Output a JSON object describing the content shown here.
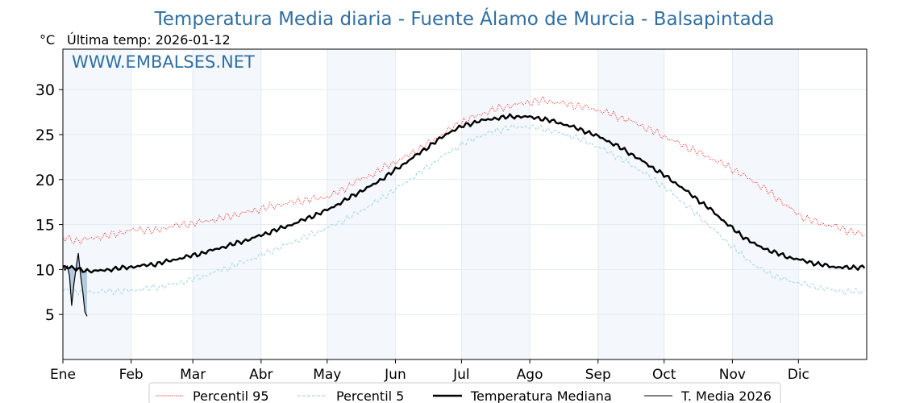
{
  "chart_data": {
    "type": "line",
    "title": "Temperatura Media diaria - Fuente Álamo de Murcia - Balsapintada",
    "unit_label": "°C",
    "last_temp": "Última temp: 2026-01-12",
    "watermark": "WWW.EMBALSES.NET",
    "xlim": [
      1,
      366
    ],
    "ylim": [
      0,
      34.5
    ],
    "yticks": [
      5,
      10,
      15,
      20,
      25,
      30
    ],
    "months": [
      {
        "label": "Ene",
        "day": 1
      },
      {
        "label": "Feb",
        "day": 32
      },
      {
        "label": "Mar",
        "day": 60
      },
      {
        "label": "Abr",
        "day": 91
      },
      {
        "label": "May",
        "day": 121
      },
      {
        "label": "Jun",
        "day": 152
      },
      {
        "label": "Jul",
        "day": 182
      },
      {
        "label": "Ago",
        "day": 213
      },
      {
        "label": "Sep",
        "day": 244
      },
      {
        "label": "Oct",
        "day": 274
      },
      {
        "label": "Nov",
        "day": 305
      },
      {
        "label": "Dic",
        "day": 335
      }
    ],
    "shaded_months": [
      "Ene",
      "Mar",
      "May",
      "Jul",
      "Sep",
      "Nov"
    ],
    "grid": true,
    "legend_position": "bottom",
    "series": [
      {
        "name": "Percentil 95",
        "color": "#ff0000",
        "style": "dotted",
        "x": [
          1,
          8,
          15,
          22,
          29,
          36,
          43,
          50,
          57,
          64,
          71,
          78,
          85,
          92,
          99,
          106,
          113,
          120,
          127,
          134,
          141,
          148,
          155,
          162,
          169,
          176,
          183,
          190,
          197,
          204,
          211,
          218,
          225,
          232,
          239,
          246,
          253,
          260,
          267,
          274,
          281,
          288,
          295,
          302,
          309,
          316,
          323,
          330,
          337,
          344,
          351,
          358,
          365
        ],
        "y": [
          13.5,
          13.2,
          13.5,
          13.8,
          14.2,
          14.5,
          14.3,
          14.8,
          15.0,
          15.3,
          15.6,
          16.0,
          16.4,
          16.8,
          17.2,
          17.5,
          17.8,
          18.0,
          18.7,
          19.8,
          20.5,
          21.5,
          22.3,
          23.3,
          24.3,
          25.5,
          26.5,
          27.2,
          27.8,
          28.2,
          28.5,
          28.8,
          28.6,
          28.3,
          28.0,
          27.6,
          27.0,
          26.4,
          25.6,
          24.8,
          24.0,
          23.2,
          22.4,
          21.6,
          20.6,
          19.6,
          18.4,
          17.0,
          15.8,
          15.2,
          14.8,
          14.3,
          13.8
        ]
      },
      {
        "name": "Percentil 5",
        "color": "#add8e6",
        "style": "dashed",
        "x": [
          1,
          8,
          15,
          22,
          29,
          36,
          43,
          50,
          57,
          64,
          71,
          78,
          85,
          92,
          99,
          106,
          113,
          120,
          127,
          134,
          141,
          148,
          155,
          162,
          169,
          176,
          183,
          190,
          197,
          204,
          211,
          218,
          225,
          232,
          239,
          246,
          253,
          260,
          267,
          274,
          281,
          288,
          295,
          302,
          309,
          316,
          323,
          330,
          337,
          344,
          351,
          358,
          365
        ],
        "y": [
          7.8,
          7.5,
          7.5,
          7.6,
          7.6,
          7.8,
          8.0,
          8.3,
          8.7,
          9.2,
          9.8,
          10.4,
          11.0,
          11.7,
          12.4,
          13.1,
          13.8,
          14.5,
          15.3,
          16.2,
          17.2,
          18.3,
          19.4,
          20.6,
          21.8,
          23.0,
          24.0,
          24.8,
          25.4,
          25.8,
          25.9,
          25.7,
          25.3,
          24.8,
          24.2,
          23.4,
          22.5,
          21.5,
          20.4,
          19.2,
          17.8,
          16.3,
          14.8,
          13.2,
          11.7,
          10.3,
          9.4,
          8.8,
          8.4,
          8.0,
          7.7,
          7.5,
          7.6
        ]
      },
      {
        "name": "Temperatura Mediana",
        "color": "#000000",
        "style": "thick",
        "x": [
          1,
          8,
          15,
          22,
          29,
          36,
          43,
          50,
          57,
          64,
          71,
          78,
          85,
          92,
          99,
          106,
          113,
          120,
          127,
          134,
          141,
          148,
          155,
          162,
          169,
          176,
          183,
          190,
          197,
          204,
          211,
          218,
          225,
          232,
          239,
          246,
          253,
          260,
          267,
          274,
          281,
          288,
          295,
          302,
          309,
          316,
          323,
          330,
          337,
          344,
          351,
          358,
          365
        ],
        "y": [
          10.4,
          10.0,
          9.8,
          10.0,
          10.2,
          10.4,
          10.6,
          11.0,
          11.4,
          11.8,
          12.3,
          12.8,
          13.3,
          13.9,
          14.5,
          15.1,
          15.8,
          16.5,
          17.4,
          18.4,
          19.3,
          20.4,
          21.6,
          22.8,
          24.0,
          25.2,
          26.0,
          26.5,
          26.8,
          27.0,
          27.0,
          26.8,
          26.4,
          25.9,
          25.3,
          24.6,
          23.7,
          22.7,
          21.6,
          20.5,
          19.3,
          18.0,
          16.7,
          15.2,
          13.8,
          12.7,
          12.0,
          11.4,
          11.0,
          10.6,
          10.3,
          10.2,
          10.3
        ]
      },
      {
        "name": "T. Media 2026",
        "color": "#000000",
        "style": "thin",
        "x": [
          1,
          2,
          3,
          4,
          5,
          6,
          7,
          8,
          9,
          10,
          11,
          12
        ],
        "y": [
          10.5,
          9.9,
          10.4,
          9.3,
          6.0,
          8.4,
          10.2,
          11.8,
          9.4,
          7.6,
          5.3,
          4.8
        ]
      }
    ]
  }
}
